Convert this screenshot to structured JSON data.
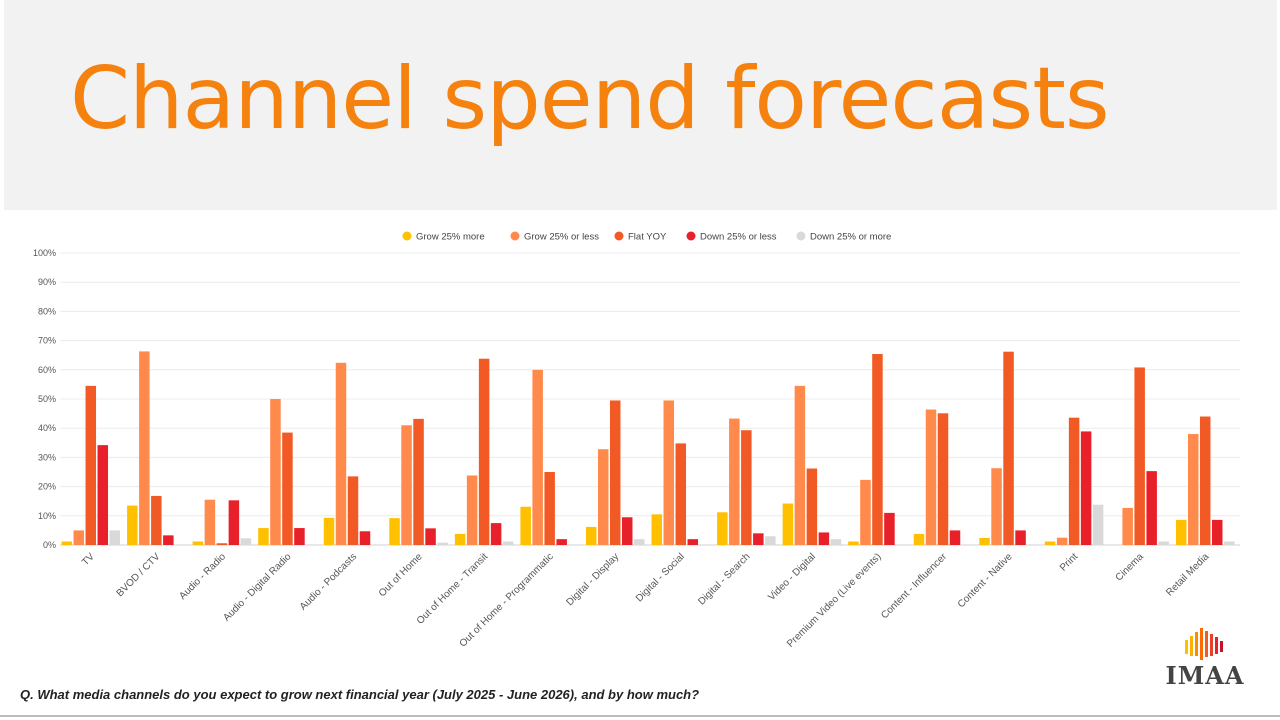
{
  "header": {
    "title": "Channel spend forecasts"
  },
  "footnote": "Q. What media channels do you expect to grow next financial year (July 2025 - June 2026), and by how much?",
  "logo": {
    "text": "IMAA"
  },
  "chart_data": {
    "type": "bar",
    "ylim": [
      0,
      100
    ],
    "yticks": [
      "0%",
      "10%",
      "20%",
      "30%",
      "40%",
      "50%",
      "60%",
      "70%",
      "80%",
      "90%",
      "100%"
    ],
    "categories": [
      "TV",
      "BVOD / CTV",
      "Audio - Radio",
      "Audio - Digital Radio",
      "Audio - Podcasts",
      "Out of Home",
      "Out of Home - Transit",
      "Out of Home - Programmatic",
      "Digital - Display",
      "Digital - Social",
      "Digital - Search",
      "Video - Digital",
      "Premium Video (Live events)",
      "Content - Influencer",
      "Content - Native",
      "Print",
      "Cinema",
      "Retail Media"
    ],
    "series": [
      {
        "name": "Grow 25% more",
        "color": "#ffc000",
        "values": [
          1.2,
          13.5,
          1.2,
          5.8,
          9.3,
          9.2,
          3.8,
          13.1,
          6.2,
          10.5,
          11.2,
          14.2,
          1.2,
          3.8,
          2.4,
          1.2,
          0.0,
          8.6
        ]
      },
      {
        "name": "Grow 25% or less",
        "color": "#ff8a4c",
        "values": [
          5.0,
          66.3,
          15.5,
          50.0,
          62.4,
          41.0,
          23.8,
          60.0,
          32.8,
          49.5,
          43.3,
          54.5,
          22.3,
          46.4,
          26.3,
          2.5,
          12.7,
          38.0
        ]
      },
      {
        "name": "Flat YOY",
        "color": "#f15a24",
        "values": [
          54.5,
          16.8,
          0.6,
          38.5,
          23.5,
          43.2,
          63.8,
          25.0,
          49.5,
          34.8,
          39.3,
          26.2,
          65.4,
          45.1,
          66.2,
          43.6,
          60.8,
          44.0
        ]
      },
      {
        "name": "Down 25% or less",
        "color": "#e8202a",
        "values": [
          34.2,
          3.3,
          15.3,
          5.8,
          4.7,
          5.7,
          7.5,
          2.0,
          9.5,
          2.0,
          4.0,
          4.3,
          11.0,
          5.0,
          5.0,
          38.9,
          25.3,
          8.6
        ]
      },
      {
        "name": "Down 25% or more",
        "color": "#d9d9d9",
        "values": [
          5.0,
          0.0,
          2.3,
          0.0,
          0.0,
          0.8,
          1.2,
          0.0,
          2.0,
          0.0,
          3.0,
          2.0,
          0.0,
          0.0,
          0.0,
          13.8,
          1.2,
          1.2
        ]
      }
    ],
    "legend_position": "top-center",
    "grid": true
  }
}
